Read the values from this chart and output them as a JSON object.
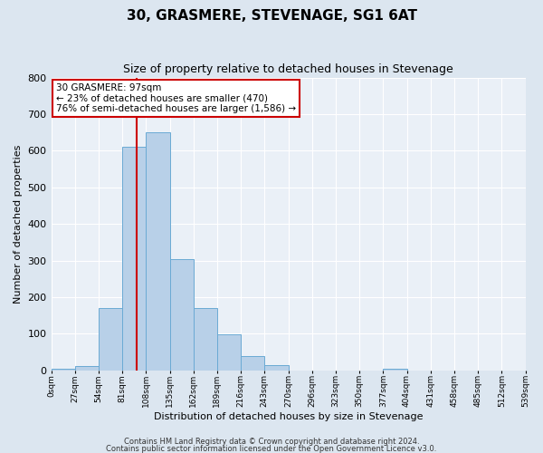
{
  "title": "30, GRASMERE, STEVENAGE, SG1 6AT",
  "subtitle": "Size of property relative to detached houses in Stevenage",
  "xlabel": "Distribution of detached houses by size in Stevenage",
  "ylabel": "Number of detached properties",
  "bin_edges": [
    0,
    27,
    54,
    81,
    108,
    135,
    162,
    189,
    216,
    243,
    270,
    297,
    324,
    351,
    378,
    405,
    432,
    459,
    486,
    513,
    540
  ],
  "bar_heights": [
    5,
    12,
    170,
    610,
    650,
    305,
    170,
    98,
    40,
    15,
    0,
    0,
    0,
    0,
    5,
    0,
    0,
    0,
    0,
    0
  ],
  "bar_color": "#b8d0e8",
  "bar_edge_color": "#6aaad4",
  "property_value": 97,
  "vline_color": "#cc0000",
  "ylim": [
    0,
    800
  ],
  "yticks": [
    0,
    100,
    200,
    300,
    400,
    500,
    600,
    700,
    800
  ],
  "xtick_labels": [
    "0sqm",
    "27sqm",
    "54sqm",
    "81sqm",
    "108sqm",
    "135sqm",
    "162sqm",
    "189sqm",
    "216sqm",
    "243sqm",
    "270sqm",
    "296sqm",
    "323sqm",
    "350sqm",
    "377sqm",
    "404sqm",
    "431sqm",
    "458sqm",
    "485sqm",
    "512sqm",
    "539sqm"
  ],
  "annotation_text": "30 GRASMERE: 97sqm\n← 23% of detached houses are smaller (470)\n76% of semi-detached houses are larger (1,586) →",
  "annotation_box_facecolor": "#ffffff",
  "annotation_box_edgecolor": "#cc0000",
  "footer_line1": "Contains HM Land Registry data © Crown copyright and database right 2024.",
  "footer_line2": "Contains public sector information licensed under the Open Government Licence v3.0.",
  "bg_color": "#dce6f0",
  "plot_bg_color": "#eaf0f7",
  "grid_color": "#ffffff",
  "title_fontsize": 11,
  "subtitle_fontsize": 9,
  "ylabel_fontsize": 8,
  "xlabel_fontsize": 8,
  "ytick_fontsize": 8,
  "xtick_fontsize": 6.5,
  "annotation_fontsize": 7.5,
  "footer_fontsize": 6
}
